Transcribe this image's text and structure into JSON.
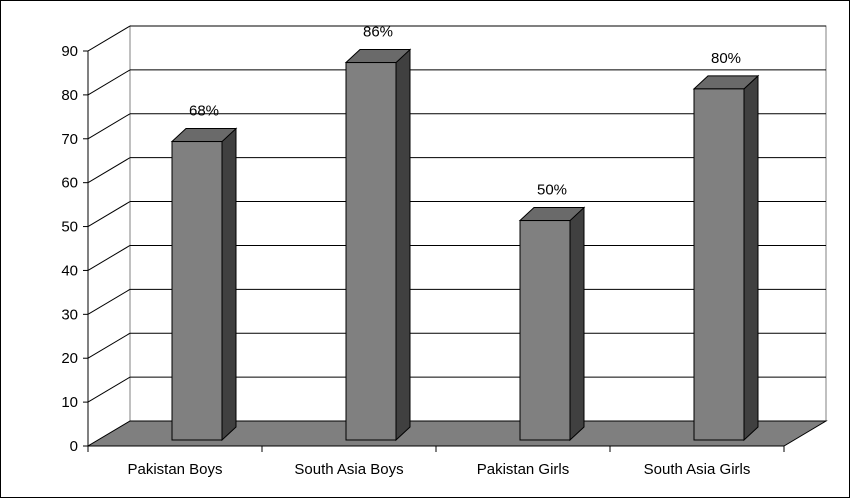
{
  "chart_data": {
    "type": "bar",
    "categories": [
      "Pakistan Boys",
      "South Asia Boys",
      "Pakistan Girls",
      "South Asia Girls"
    ],
    "values": [
      68,
      86,
      50,
      80
    ],
    "data_labels": [
      "68%",
      "86%",
      "50%",
      "80%"
    ],
    "ylim": [
      0,
      90
    ],
    "yticks": [
      0,
      10,
      20,
      30,
      40,
      50,
      60,
      70,
      80,
      90
    ],
    "grid": true,
    "style": "3d-column",
    "colors": {
      "bar_front": "#808080",
      "bar_side": "#404040",
      "bar_top": "#6a6a6a",
      "floor": "#7f7f7f",
      "grid": "#000000"
    }
  }
}
